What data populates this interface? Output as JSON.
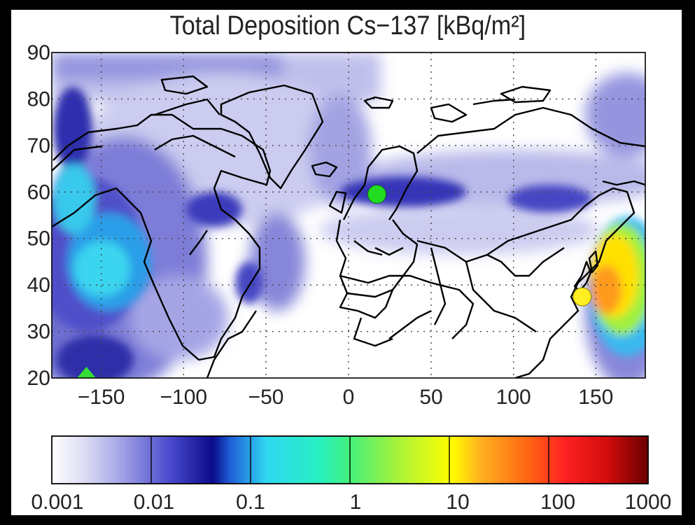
{
  "title": "Total Deposition Cs−137  [kBq/m²]",
  "map": {
    "type": "geographic contour map",
    "lon_range": [
      -180,
      180
    ],
    "lat_range": [
      20,
      90
    ],
    "y_ticks": [
      "90",
      "80",
      "70",
      "60",
      "50",
      "40",
      "30",
      "20"
    ],
    "x_ticks": [
      "−150",
      "−100",
      "−50",
      "0",
      "50",
      "100",
      "150"
    ],
    "grid": "dotted",
    "coastlines": "black"
  },
  "markers": [
    {
      "name": "green-circle",
      "shape": "circle",
      "color": "#22dd22",
      "lon": 15.5,
      "lat": 59.5
    },
    {
      "name": "yellow-circle",
      "shape": "circle",
      "color": "#ffee22",
      "lon": 141,
      "lat": 37.5
    },
    {
      "name": "green-triangle",
      "shape": "triangle",
      "color": "#33dd33",
      "lon": -156,
      "lat": 21.5
    }
  ],
  "colorbar": {
    "scale": "log",
    "ticks": [
      "0.001",
      "0.01",
      "0.1",
      "1",
      "10",
      "100",
      "1000"
    ],
    "colors": [
      "#ffffff",
      "#cfd0ee",
      "#9c9ce6",
      "#5a5ad6",
      "#1e1eaa",
      "#000080",
      "#2f8fe8",
      "#29e3f2",
      "#22f0b0",
      "#44f07a",
      "#b8f22e",
      "#ffff00",
      "#ffb020",
      "#ff6a10",
      "#ff2020",
      "#c40000",
      "#6a0000"
    ]
  }
}
